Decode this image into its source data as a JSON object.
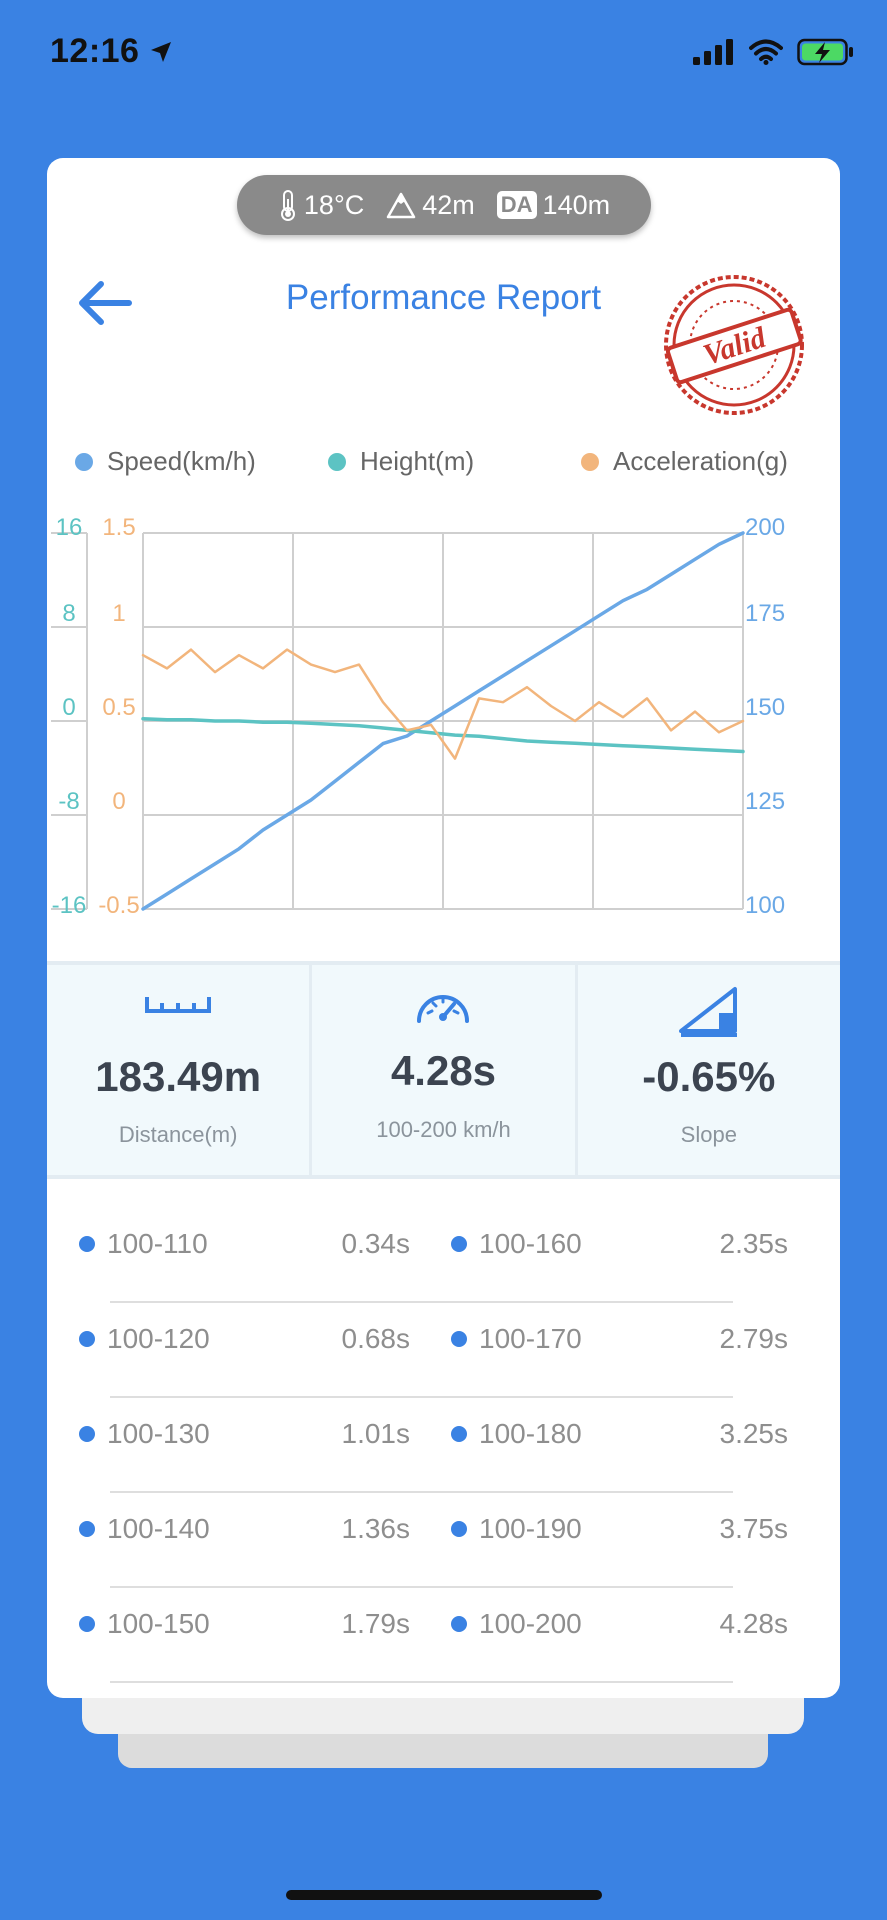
{
  "status_bar": {
    "time": "12:16"
  },
  "weather": {
    "temperature": "18°C",
    "altitude": "42m",
    "da_label": "DA",
    "density_altitude": "140m"
  },
  "header": {
    "title": "Performance Report",
    "stamp_text": "Valid"
  },
  "legend": [
    {
      "label": "Speed(km/h)",
      "color": "#6aa8e6"
    },
    {
      "label": "Height(m)",
      "color": "#5cc3c3"
    },
    {
      "label": "Acceleration(g)",
      "color": "#f2b57c"
    }
  ],
  "chart_data": {
    "type": "line",
    "axes": {
      "height": {
        "ticks": [
          "16",
          "8",
          "0",
          "-8",
          "-16"
        ],
        "range": [
          -16,
          16
        ],
        "color": "#5cc3c3"
      },
      "acceleration": {
        "ticks": [
          "1.5",
          "1",
          "0.5",
          "0",
          "-0.5"
        ],
        "range": [
          -0.5,
          1.5
        ],
        "color": "#f2b57c"
      },
      "speed": {
        "ticks": [
          "200",
          "175",
          "150",
          "125",
          "100"
        ],
        "range": [
          100,
          200
        ],
        "color": "#6aa8e6"
      }
    },
    "x": [
      0,
      0.04,
      0.08,
      0.12,
      0.16,
      0.2,
      0.24,
      0.28,
      0.32,
      0.36,
      0.4,
      0.44,
      0.48,
      0.52,
      0.56,
      0.6,
      0.64,
      0.68,
      0.72,
      0.76,
      0.8,
      0.84,
      0.88,
      0.92,
      0.96,
      1.0
    ],
    "series": [
      {
        "name": "Speed(km/h)",
        "axis": "speed",
        "values": [
          100,
          104,
          108,
          112,
          116,
          121,
          125,
          129,
          134,
          139,
          144,
          146,
          150,
          154,
          158,
          162,
          166,
          170,
          174,
          178,
          182,
          185,
          189,
          193,
          197,
          200
        ]
      },
      {
        "name": "Height(m)",
        "axis": "height",
        "values": [
          0.2,
          0.1,
          0.1,
          0.0,
          0.0,
          -0.1,
          -0.1,
          -0.2,
          -0.3,
          -0.4,
          -0.6,
          -0.8,
          -1.0,
          -1.2,
          -1.3,
          -1.5,
          -1.7,
          -1.8,
          -1.9,
          -2.0,
          -2.1,
          -2.2,
          -2.3,
          -2.4,
          -2.5,
          -2.6
        ]
      },
      {
        "name": "Acceleration(g)",
        "axis": "acceleration",
        "values": [
          0.85,
          0.78,
          0.88,
          0.76,
          0.85,
          0.78,
          0.88,
          0.8,
          0.76,
          0.8,
          0.6,
          0.45,
          0.48,
          0.3,
          0.62,
          0.6,
          0.68,
          0.58,
          0.5,
          0.6,
          0.52,
          0.62,
          0.45,
          0.55,
          0.44,
          0.5
        ]
      }
    ]
  },
  "stats": [
    {
      "value": "183.49m",
      "label": "Distance(m)",
      "icon": "ruler-icon"
    },
    {
      "value": "4.28s",
      "label": "100-200 km/h",
      "icon": "speedometer-icon"
    },
    {
      "value": "-0.65%",
      "label": "Slope",
      "icon": "slope-icon"
    }
  ],
  "splits": [
    {
      "left_range": "100-110",
      "left_time": "0.34s",
      "right_range": "100-160",
      "right_time": "2.35s"
    },
    {
      "left_range": "100-120",
      "left_time": "0.68s",
      "right_range": "100-170",
      "right_time": "2.79s"
    },
    {
      "left_range": "100-130",
      "left_time": "1.01s",
      "right_range": "100-180",
      "right_time": "3.25s"
    },
    {
      "left_range": "100-140",
      "left_time": "1.36s",
      "right_range": "100-190",
      "right_time": "3.75s"
    },
    {
      "left_range": "100-150",
      "left_time": "1.79s",
      "right_range": "100-200",
      "right_time": "4.28s"
    }
  ],
  "colors": {
    "background": "#3a82e3",
    "accent": "#3a82e3",
    "stamp": "#c8372d"
  }
}
